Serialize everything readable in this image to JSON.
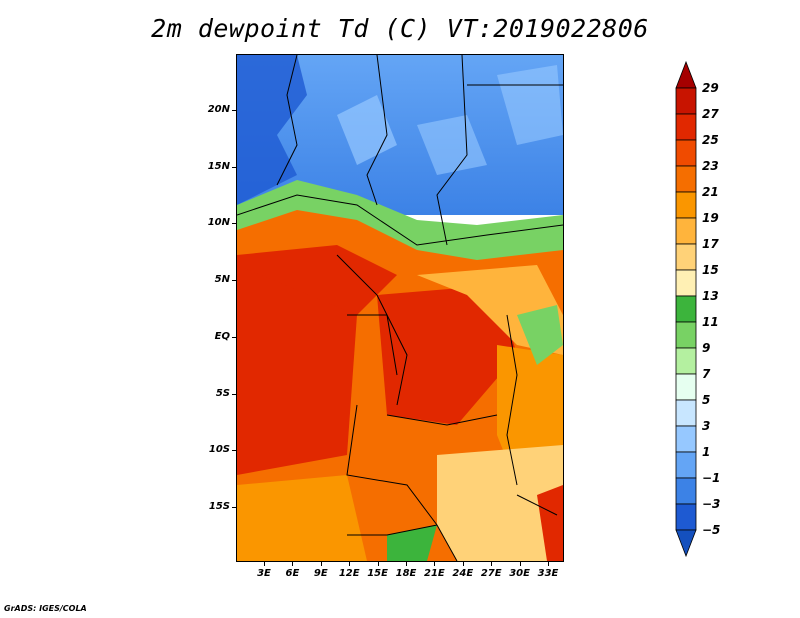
{
  "title": "2m dewpoint Td (C) VT:2019022806",
  "footer": "GrADS: IGES/COLA",
  "lat_labels": [
    "20N",
    "15N",
    "10N",
    "5N",
    "EQ",
    "5S",
    "10S",
    "15S"
  ],
  "lon_labels": [
    "3E",
    "6E",
    "9E",
    "12E",
    "15E",
    "18E",
    "21E",
    "24E",
    "27E",
    "30E",
    "33E"
  ],
  "colorbar": {
    "labels": [
      "29",
      "27",
      "25",
      "23",
      "21",
      "19",
      "17",
      "15",
      "13",
      "11",
      "9",
      "7",
      "5",
      "3",
      "1",
      "−1",
      "−3",
      "−5"
    ],
    "colors": [
      "#a50000",
      "#c81400",
      "#e12800",
      "#f04b00",
      "#f56e00",
      "#fa9600",
      "#ffb43c",
      "#ffd278",
      "#fff0b4",
      "#3cb43c",
      "#78d264",
      "#b4f0a0",
      "#e6fff0",
      "#c8e6ff",
      "#96c8ff",
      "#64a5f5",
      "#3c82e6",
      "#1e5ad2",
      "#1450be"
    ]
  }
}
